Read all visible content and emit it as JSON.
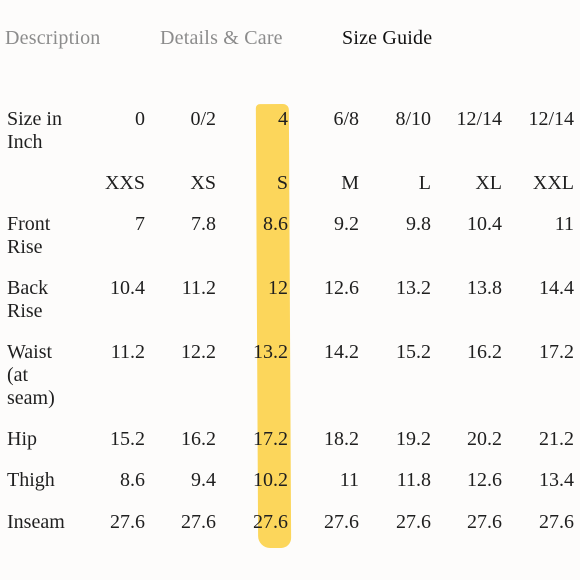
{
  "tabs": [
    {
      "label": "Description",
      "active": false
    },
    {
      "label": "Details & Care",
      "active": false
    },
    {
      "label": "Size Guide",
      "active": true
    }
  ],
  "highlight_color": "#fcd34d",
  "size_guide": {
    "highlighted_column_index": 2,
    "rows": [
      {
        "label": "Size in Inch",
        "values": [
          "0",
          "0/2",
          "4",
          "6/8",
          "8/10",
          "12/14",
          "12/14"
        ]
      },
      {
        "label": "",
        "values": [
          "XXS",
          "XS",
          "S",
          "M",
          "L",
          "XL",
          "XXL"
        ]
      },
      {
        "label": "Front Rise",
        "values": [
          "7",
          "7.8",
          "8.6",
          "9.2",
          "9.8",
          "10.4",
          "11"
        ]
      },
      {
        "label": "Back Rise",
        "values": [
          "10.4",
          "11.2",
          "12",
          "12.6",
          "13.2",
          "13.8",
          "14.4"
        ]
      },
      {
        "label": "Waist (at seam)",
        "values": [
          "11.2",
          "12.2",
          "13.2",
          "14.2",
          "15.2",
          "16.2",
          "17.2"
        ]
      },
      {
        "label": "Hip",
        "values": [
          "15.2",
          "16.2",
          "17.2",
          "18.2",
          "19.2",
          "20.2",
          "21.2"
        ]
      },
      {
        "label": "Thigh",
        "values": [
          "8.6",
          "9.4",
          "10.2",
          "11",
          "11.8",
          "12.6",
          "13.4"
        ]
      },
      {
        "label": "Inseam",
        "values": [
          "27.6",
          "27.6",
          "27.6",
          "27.6",
          "27.6",
          "27.6",
          "27.6"
        ]
      }
    ]
  }
}
